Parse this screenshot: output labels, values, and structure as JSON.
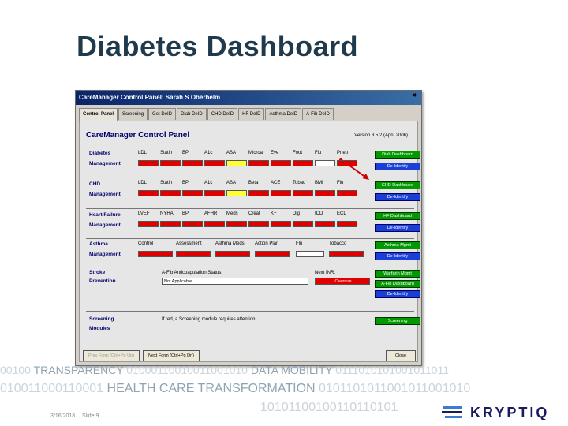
{
  "slide": {
    "title": "Diabetes Dashboard",
    "date": "3/16/2018",
    "slide_number": "Slide 9",
    "logo_text": "KRYPTIQ",
    "band_line1_a": "00100 ",
    "band_line1_b": "TRANSPARENCY",
    "band_line1_c": " 01000110010011001010 ",
    "band_line1_d": "DATA MOBILITY",
    "band_line1_e": " 0111010101001011011",
    "band_line2_a": "010011000110001 ",
    "band_line2_b": "HEALTH CARE TRANSFORMATION",
    "band_line2_c": " 0101101011001011001010",
    "band_line3": "10101100100110110101"
  },
  "window": {
    "title": "CareManager Control Panel: Sarah S Oberhelm",
    "tabs": [
      "Control Panel",
      "Screening",
      "Get DeID",
      "Diab DeID",
      "CHD DeID",
      "HF DeID",
      "Asthma DeID",
      "A-Fib DeID"
    ],
    "close_glyph": "✖"
  },
  "panel": {
    "title": "CareManager Control Panel",
    "version": "Version 3.5.2 (April 2006)",
    "diabetes": {
      "label1": "Diabetes",
      "label2": "Management",
      "headers": [
        "LDL",
        "Statin",
        "BP",
        "A1c",
        "ASA",
        "Microal",
        "Eye",
        "Foot",
        "Flu",
        "Pneu"
      ],
      "colors": [
        "red",
        "red",
        "red",
        "red",
        "yellow",
        "red",
        "red",
        "red",
        "white",
        "red"
      ],
      "btn1": "Diab Dashboard",
      "btn2": "De-Identify"
    },
    "chd": {
      "label1": "CHD",
      "label2": "Management",
      "headers": [
        "LDL",
        "Statin",
        "BP",
        "A1c",
        "ASA",
        "Beta",
        "ACE",
        "Tobac",
        "BMI",
        "Flu"
      ],
      "colors": [
        "red",
        "red",
        "red",
        "red",
        "yellow",
        "red",
        "red",
        "red",
        "red",
        "red"
      ],
      "btn1": "CHD Dashboard",
      "btn2": "De-Identify"
    },
    "hf": {
      "label1": "Heart Failure",
      "label2": "Management",
      "headers": [
        "LVEF",
        "NYHA",
        "BP",
        "AFHR",
        "Meds",
        "Creat",
        "K+",
        "Dig",
        "ICD",
        "ECL"
      ],
      "colors": [
        "red",
        "red",
        "red",
        "red",
        "red",
        "red",
        "red",
        "red",
        "red",
        "red"
      ],
      "btn1": "HF Dashboard",
      "btn2": "De-Identify"
    },
    "asthma": {
      "label1": "Asthma",
      "label2": "Management",
      "headers": [
        "Control",
        "Assessment",
        "Asthma Meds",
        "Action Plan",
        "Flu",
        "Tobacco"
      ],
      "colors": [
        "red",
        "red",
        "red",
        "red",
        "white",
        "red"
      ],
      "btn1": "Asthma Mgmt",
      "btn2": "De-Identify"
    },
    "stroke": {
      "label1": "Stroke",
      "label2": "Prevention",
      "status_label": "A-Fib Anticoagulation Status:",
      "status_value": "Not Applicable",
      "inr_label": "Next INR:",
      "inr_value": "Overdue",
      "btn1": "Warfarin Mgmt",
      "btn2": "A-Fib Dashboard",
      "btn3": "De-Identify"
    },
    "screening": {
      "label1": "Screening",
      "label2": "Modules",
      "message": "If red, a Screening module requires attention",
      "btn1": "Screening"
    },
    "bottom": {
      "prev": "Prev Form (Ctrl+Pg Up)",
      "next": "Next Form (Ctrl+Pg Dn)",
      "close": "Close"
    }
  },
  "colors": {
    "red": "#e00000",
    "yellow": "#ffff33",
    "green_button": "#009900",
    "blue_button": "#1a3fd6"
  }
}
